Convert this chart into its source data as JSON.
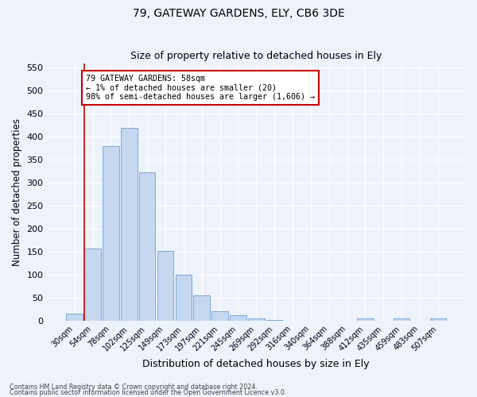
{
  "title1": "79, GATEWAY GARDENS, ELY, CB6 3DE",
  "title2": "Size of property relative to detached houses in Ely",
  "xlabel": "Distribution of detached houses by size in Ely",
  "ylabel": "Number of detached properties",
  "categories": [
    "30sqm",
    "54sqm",
    "78sqm",
    "102sqm",
    "125sqm",
    "149sqm",
    "173sqm",
    "197sqm",
    "221sqm",
    "245sqm",
    "269sqm",
    "292sqm",
    "316sqm",
    "340sqm",
    "364sqm",
    "388sqm",
    "412sqm",
    "435sqm",
    "459sqm",
    "483sqm",
    "507sqm"
  ],
  "values": [
    15,
    157,
    380,
    420,
    323,
    152,
    100,
    55,
    20,
    12,
    5,
    2,
    0,
    0,
    0,
    0,
    5,
    0,
    5,
    0,
    5
  ],
  "bar_color": "#c5d8f0",
  "bar_edge_color": "#6b9fd4",
  "annotation_text": "79 GATEWAY GARDENS: 58sqm\n← 1% of detached houses are smaller (20)\n98% of semi-detached houses are larger (1,606) →",
  "annotation_box_color": "#ffffff",
  "annotation_border_color": "#cc0000",
  "vline_color": "#cc0000",
  "ylim": [
    0,
    560
  ],
  "yticks": [
    0,
    50,
    100,
    150,
    200,
    250,
    300,
    350,
    400,
    450,
    500,
    550
  ],
  "footer1": "Contains HM Land Registry data © Crown copyright and database right 2024.",
  "footer2": "Contains public sector information licensed under the Open Government Licence v3.0.",
  "bg_color": "#eef2fb",
  "grid_color": "#ffffff"
}
